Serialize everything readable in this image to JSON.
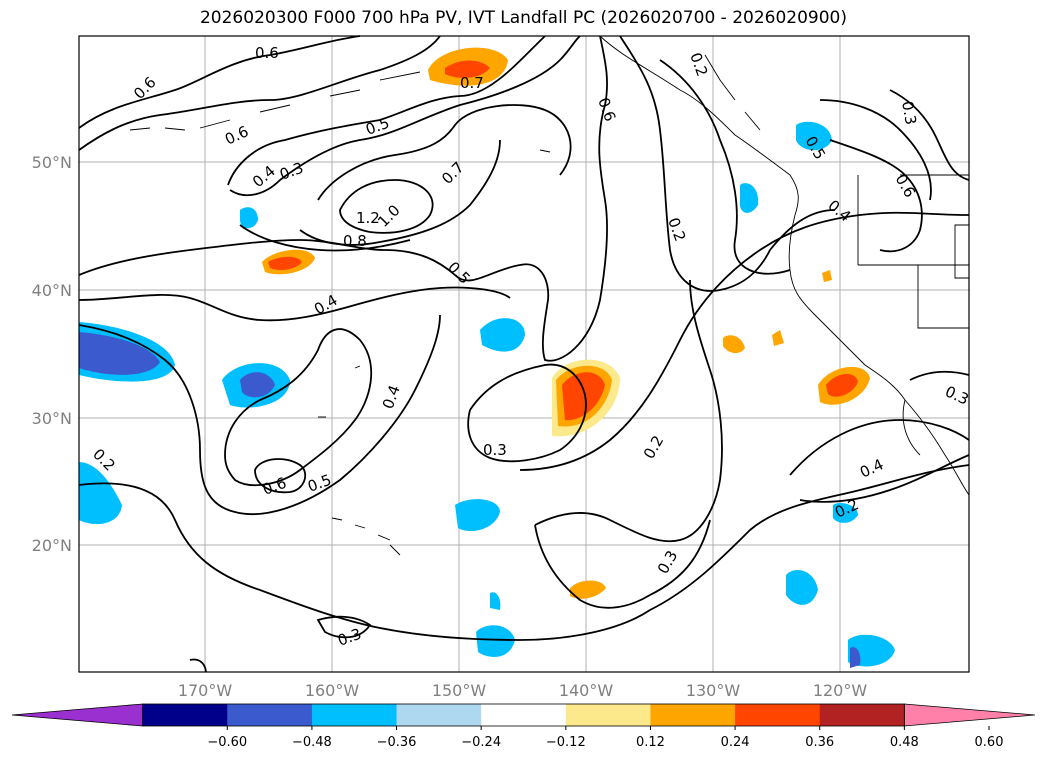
{
  "title": "2026020300 F000 700 hPa PV, IVT Landfall PC (2026020700 - 2026020900)",
  "map": {
    "lat_labels": [
      "50°N",
      "40°N",
      "30°N",
      "20°N"
    ],
    "lon_labels": [
      "170°W",
      "160°W",
      "150°W",
      "140°W",
      "130°W",
      "120°W"
    ],
    "contour_labels": [
      "0.6",
      "0.6",
      "0.6",
      "0.7",
      "0.5",
      "0.3",
      "0.4",
      "0.7",
      "1.2",
      "1.0",
      "0.8",
      "0.5",
      "0.6",
      "0.2",
      "0.4",
      "0.4",
      "0.3",
      "0.2",
      "0.6",
      "0.5",
      "0.3",
      "0.2",
      "0.3",
      "0.4",
      "0.2",
      "0.5",
      "0.4",
      "0.3",
      "0.6",
      "0.3",
      "0.2"
    ]
  },
  "colorbar": {
    "colors": [
      "#9b30d0",
      "#00008b",
      "#3a5acd",
      "#00bfff",
      "#add8f0",
      "#ffffff",
      "#fce98b",
      "#ffa500",
      "#ff4500",
      "#b22222",
      "#ff80a8"
    ],
    "tick_labels": [
      "−0.60",
      "−0.48",
      "−0.36",
      "−0.24",
      "−0.12",
      "0.12",
      "0.24",
      "0.36",
      "0.48",
      "0.60"
    ]
  }
}
